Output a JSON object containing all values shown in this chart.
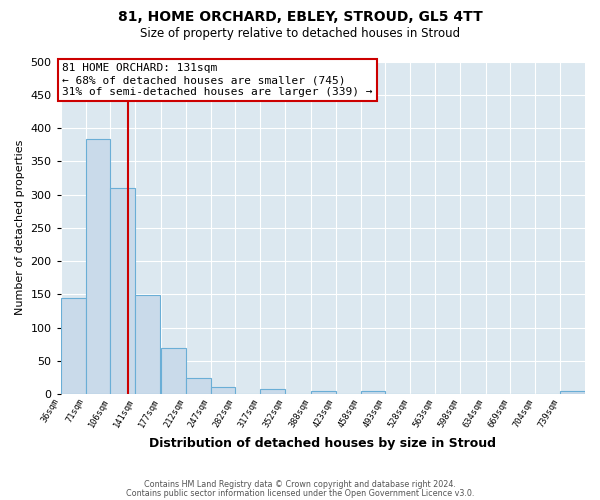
{
  "title": "81, HOME ORCHARD, EBLEY, STROUD, GL5 4TT",
  "subtitle": "Size of property relative to detached houses in Stroud",
  "xlabel": "Distribution of detached houses by size in Stroud",
  "ylabel": "Number of detached properties",
  "bin_labels": [
    "36sqm",
    "71sqm",
    "106sqm",
    "141sqm",
    "177sqm",
    "212sqm",
    "247sqm",
    "282sqm",
    "317sqm",
    "352sqm",
    "388sqm",
    "423sqm",
    "458sqm",
    "493sqm",
    "528sqm",
    "563sqm",
    "598sqm",
    "634sqm",
    "669sqm",
    "704sqm",
    "739sqm"
  ],
  "bin_edges": [
    36,
    71,
    106,
    141,
    177,
    212,
    247,
    282,
    317,
    352,
    388,
    423,
    458,
    493,
    528,
    563,
    598,
    634,
    669,
    704,
    739
  ],
  "bar_heights": [
    144,
    384,
    310,
    149,
    70,
    24,
    10,
    0,
    7,
    0,
    5,
    0,
    4,
    0,
    0,
    0,
    0,
    0,
    0,
    0,
    5
  ],
  "bar_color": "#c9daea",
  "bar_edge_color": "#6aaed6",
  "vline_x": 131,
  "vline_color": "#cc0000",
  "annotation_title": "81 HOME ORCHARD: 131sqm",
  "annotation_line1": "← 68% of detached houses are smaller (745)",
  "annotation_line2": "31% of semi-detached houses are larger (339) →",
  "annotation_box_color": "#ffffff",
  "annotation_box_edge": "#cc0000",
  "ylim": [
    0,
    500
  ],
  "plot_bg_color": "#dce8f0",
  "fig_bg_color": "#ffffff",
  "grid_color": "#ffffff",
  "footer1": "Contains HM Land Registry data © Crown copyright and database right 2024.",
  "footer2": "Contains public sector information licensed under the Open Government Licence v3.0."
}
